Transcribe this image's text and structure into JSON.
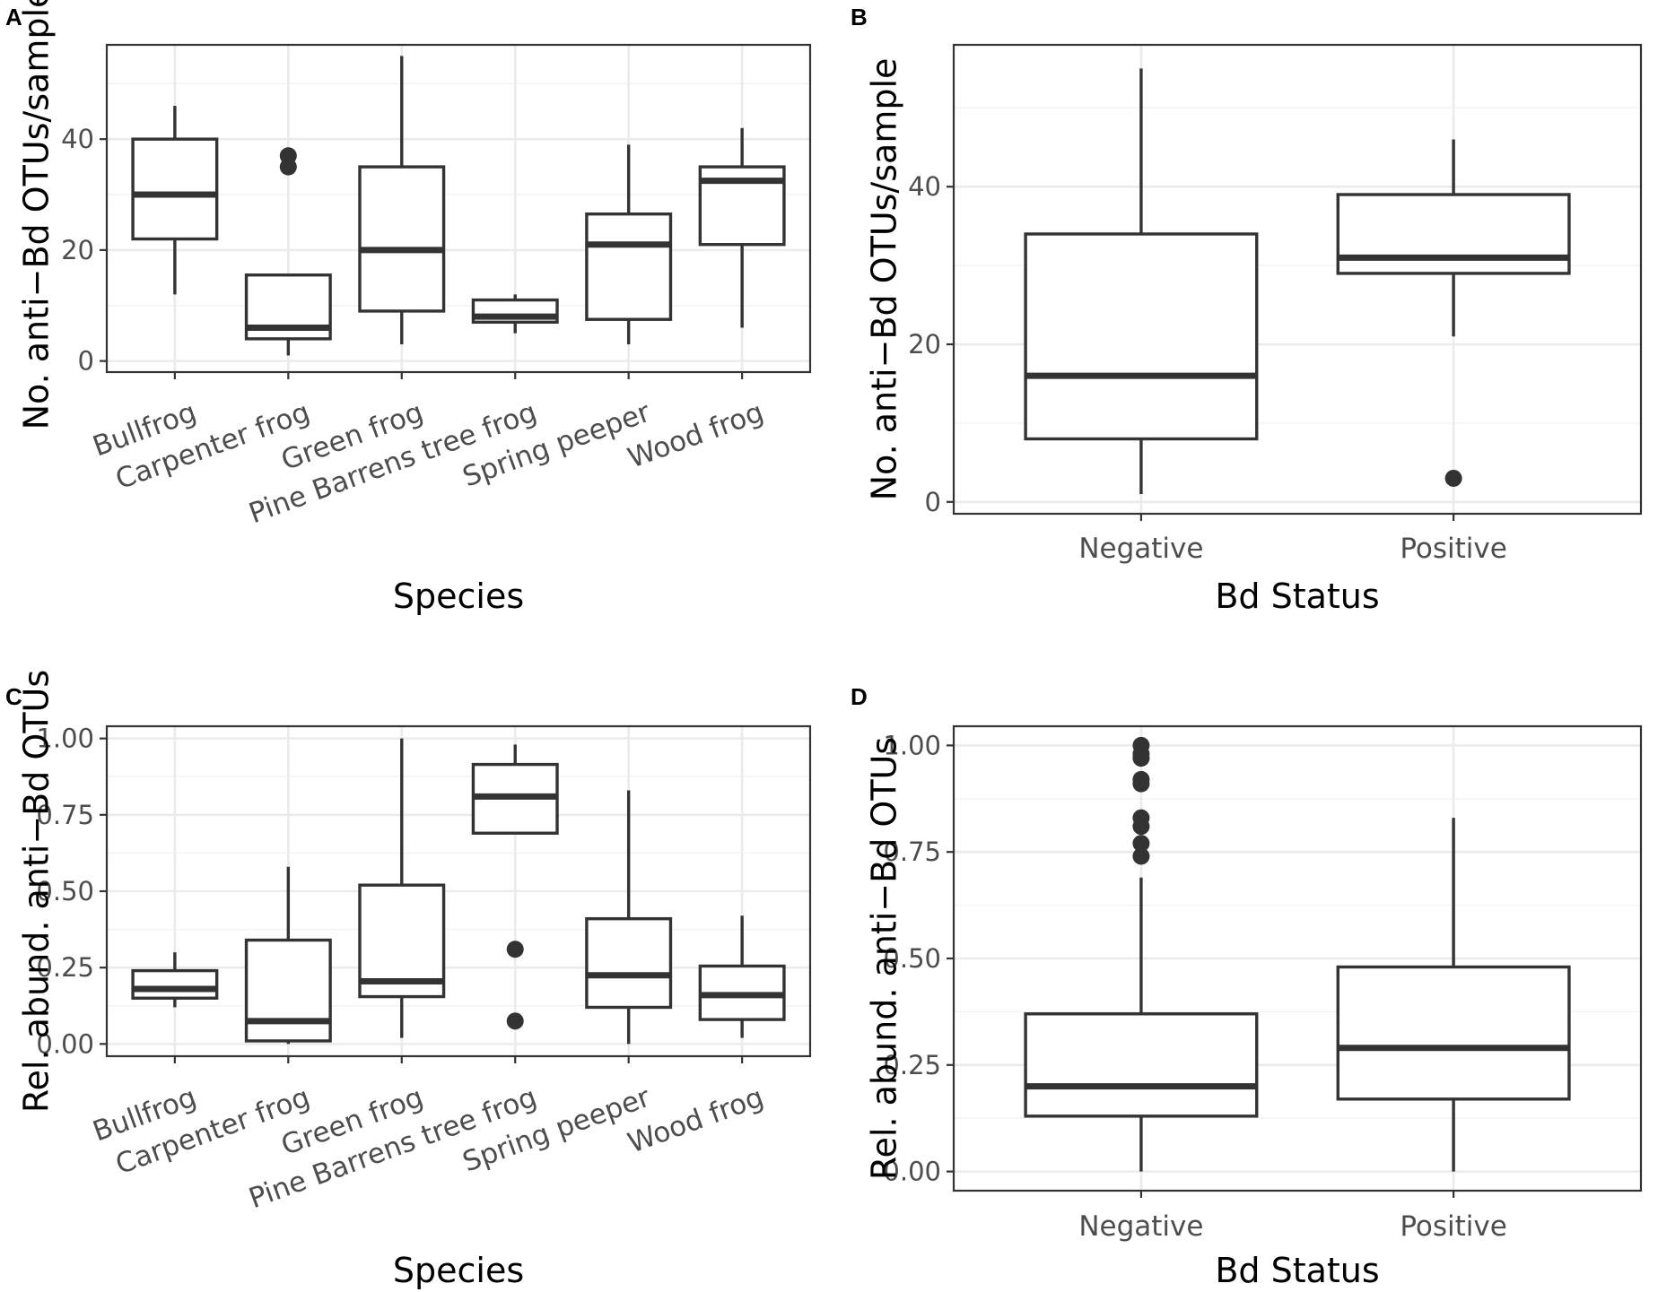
{
  "chart_data": [
    {
      "panel": "A",
      "type": "boxplot",
      "xlabel": "Species",
      "ylabel": "No. anti−Bd OTUs/sample",
      "ylim": [
        -2,
        57
      ],
      "yticks": [
        0,
        20,
        40
      ],
      "grid": true,
      "categories": [
        "Bullfrog",
        "Carpenter frog",
        "Green frog",
        "Pine Barrens tree frog",
        "Spring peeper",
        "Wood frog"
      ],
      "boxes": [
        {
          "q1": 22,
          "median": 30,
          "q3": 40,
          "low": 12,
          "high": 46,
          "outliers": []
        },
        {
          "q1": 4,
          "median": 6,
          "q3": 15.5,
          "low": 1,
          "high": 15.5,
          "outliers": [
            35,
            37
          ]
        },
        {
          "q1": 9,
          "median": 20,
          "q3": 35,
          "low": 3,
          "high": 55,
          "outliers": []
        },
        {
          "q1": 7,
          "median": 8,
          "q3": 11,
          "low": 5,
          "high": 12,
          "outliers": []
        },
        {
          "q1": 7.5,
          "median": 21,
          "q3": 26.5,
          "low": 3,
          "high": 39,
          "outliers": []
        },
        {
          "q1": 21,
          "median": 32.5,
          "q3": 35,
          "low": 6,
          "high": 42,
          "outliers": []
        }
      ]
    },
    {
      "panel": "B",
      "type": "boxplot",
      "xlabel": "Bd Status",
      "ylabel": "No. anti−Bd OTUs/sample",
      "ylim": [
        -1.5,
        58
      ],
      "yticks": [
        0,
        20,
        40
      ],
      "grid": true,
      "categories": [
        "Negative",
        "Positive"
      ],
      "boxes": [
        {
          "q1": 8,
          "median": 16,
          "q3": 34,
          "low": 1,
          "high": 55,
          "outliers": []
        },
        {
          "q1": 29,
          "median": 31,
          "q3": 39,
          "low": 21,
          "high": 46,
          "outliers": [
            3
          ]
        }
      ]
    },
    {
      "panel": "C",
      "type": "boxplot",
      "xlabel": "Species",
      "ylabel": "Rel. abund. anti−Bd OTUs",
      "ylim": [
        -0.04,
        1.04
      ],
      "yticks": [
        0.0,
        0.25,
        0.5,
        0.75,
        1.0
      ],
      "ytick_labels": [
        "0.00",
        "0.25",
        "0.50",
        "0.75",
        "1.00"
      ],
      "grid": true,
      "categories": [
        "Bullfrog",
        "Carpenter frog",
        "Green frog",
        "Pine Barrens tree frog",
        "Spring peeper",
        "Wood frog"
      ],
      "boxes": [
        {
          "q1": 0.15,
          "median": 0.18,
          "q3": 0.24,
          "low": 0.12,
          "high": 0.3,
          "outliers": []
        },
        {
          "q1": 0.01,
          "median": 0.075,
          "q3": 0.34,
          "low": 0.0,
          "high": 0.58,
          "outliers": []
        },
        {
          "q1": 0.155,
          "median": 0.205,
          "q3": 0.52,
          "low": 0.02,
          "high": 1.0,
          "outliers": []
        },
        {
          "q1": 0.69,
          "median": 0.81,
          "q3": 0.915,
          "low": 0.69,
          "high": 0.98,
          "outliers": [
            0.075,
            0.31
          ]
        },
        {
          "q1": 0.12,
          "median": 0.225,
          "q3": 0.41,
          "low": 0.0,
          "high": 0.83,
          "outliers": []
        },
        {
          "q1": 0.08,
          "median": 0.16,
          "q3": 0.255,
          "low": 0.02,
          "high": 0.42,
          "outliers": []
        }
      ]
    },
    {
      "panel": "D",
      "type": "boxplot",
      "xlabel": "Bd Status",
      "ylabel": "Rel. abund. anti−Bd OTUs",
      "ylim": [
        -0.045,
        1.045
      ],
      "yticks": [
        0.0,
        0.25,
        0.5,
        0.75,
        1.0
      ],
      "ytick_labels": [
        "0.00",
        "0.25",
        "0.50",
        "0.75",
        "1.00"
      ],
      "grid": true,
      "categories": [
        "Negative",
        "Positive"
      ],
      "boxes": [
        {
          "q1": 0.13,
          "median": 0.2,
          "q3": 0.37,
          "low": 0.0,
          "high": 0.69,
          "outliers": [
            0.74,
            0.77,
            0.81,
            0.83,
            0.91,
            0.92,
            0.97,
            0.98,
            1.0
          ]
        },
        {
          "q1": 0.17,
          "median": 0.29,
          "q3": 0.48,
          "low": 0.0,
          "high": 0.83,
          "outliers": []
        }
      ]
    }
  ]
}
